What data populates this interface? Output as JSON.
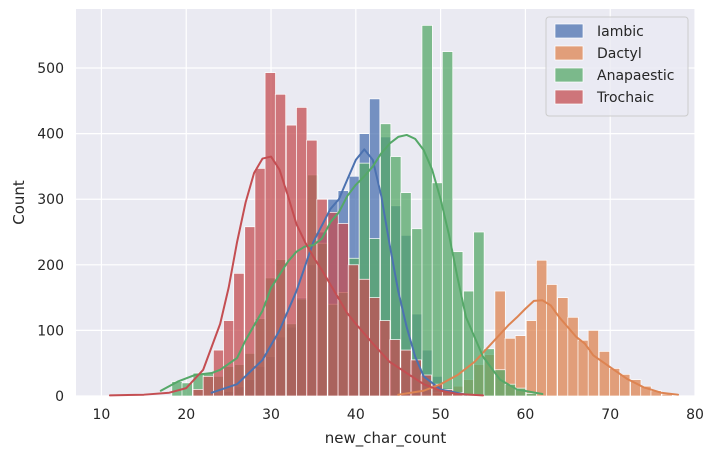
{
  "chart_data": {
    "type": "histogram",
    "xlabel": "new_char_count",
    "ylabel": "Count",
    "xlim": [
      7,
      80
    ],
    "ylim": [
      0,
      590
    ],
    "xticks": [
      "10",
      "20",
      "30",
      "40",
      "50",
      "60",
      "70",
      "80"
    ],
    "yticks": [
      "0",
      "100",
      "200",
      "300",
      "400",
      "500"
    ],
    "grid": true,
    "background": "#EAEAF2",
    "legend": {
      "placement": "top-right",
      "entries": [
        "Iambic",
        "Dactyl",
        "Anapaestic",
        "Trochaic"
      ]
    },
    "bin_width": 1.23,
    "series": [
      {
        "name": "Iambic",
        "color": "#4C72B0",
        "bins": [
          [
            23.2,
            3
          ],
          [
            24.4,
            7
          ],
          [
            25.6,
            14
          ],
          [
            26.9,
            25
          ],
          [
            28.1,
            45
          ],
          [
            29.3,
            60
          ],
          [
            30.6,
            90
          ],
          [
            31.8,
            105
          ],
          [
            33.0,
            150
          ],
          [
            34.3,
            200
          ],
          [
            35.5,
            250
          ],
          [
            36.7,
            300
          ],
          [
            37.9,
            313
          ],
          [
            39.2,
            335
          ],
          [
            40.4,
            400
          ],
          [
            41.6,
            453
          ],
          [
            42.9,
            395
          ],
          [
            44.1,
            290
          ],
          [
            45.3,
            245
          ],
          [
            46.6,
            125
          ],
          [
            47.8,
            70
          ],
          [
            49.0,
            30
          ],
          [
            50.2,
            12
          ],
          [
            51.5,
            5
          ]
        ],
        "kde": [
          [
            23,
            5
          ],
          [
            26,
            18
          ],
          [
            29,
            55
          ],
          [
            31,
            100
          ],
          [
            33,
            160
          ],
          [
            35,
            235
          ],
          [
            37,
            285
          ],
          [
            38,
            300
          ],
          [
            39,
            330
          ],
          [
            40,
            360
          ],
          [
            41,
            376
          ],
          [
            42,
            360
          ],
          [
            43,
            305
          ],
          [
            44,
            230
          ],
          [
            45,
            160
          ],
          [
            46,
            105
          ],
          [
            47,
            60
          ],
          [
            48,
            30
          ],
          [
            50,
            10
          ],
          [
            53,
            2
          ]
        ]
      },
      {
        "name": "Dactyl",
        "color": "#DD8452",
        "bins": [
          [
            47.8,
            2
          ],
          [
            49.0,
            5
          ],
          [
            50.2,
            10
          ],
          [
            51.5,
            15
          ],
          [
            52.7,
            25
          ],
          [
            53.9,
            48
          ],
          [
            55.2,
            63
          ],
          [
            56.4,
            160
          ],
          [
            57.6,
            88
          ],
          [
            58.8,
            92
          ],
          [
            60.1,
            115
          ],
          [
            61.3,
            207
          ],
          [
            62.5,
            170
          ],
          [
            63.8,
            150
          ],
          [
            65.0,
            120
          ],
          [
            66.2,
            85
          ],
          [
            67.4,
            100
          ],
          [
            68.7,
            68
          ],
          [
            69.9,
            42
          ],
          [
            71.1,
            33
          ],
          [
            72.4,
            25
          ],
          [
            73.6,
            15
          ],
          [
            74.8,
            8
          ],
          [
            76.1,
            3
          ]
        ],
        "kde": [
          [
            45,
            2
          ],
          [
            48,
            8
          ],
          [
            50,
            18
          ],
          [
            52,
            32
          ],
          [
            54,
            52
          ],
          [
            56,
            80
          ],
          [
            58,
            108
          ],
          [
            59,
            120
          ],
          [
            60,
            133
          ],
          [
            61,
            145
          ],
          [
            62,
            146
          ],
          [
            63,
            138
          ],
          [
            64,
            120
          ],
          [
            65,
            105
          ],
          [
            66,
            90
          ],
          [
            67,
            80
          ],
          [
            68,
            62
          ],
          [
            70,
            44
          ],
          [
            72,
            26
          ],
          [
            74,
            13
          ],
          [
            76,
            5
          ],
          [
            78,
            2
          ]
        ]
      },
      {
        "name": "Anapaestic",
        "color": "#55A868",
        "bins": [
          [
            18.3,
            22
          ],
          [
            19.5,
            20
          ],
          [
            20.8,
            35
          ],
          [
            22.0,
            35
          ],
          [
            23.2,
            30
          ],
          [
            24.4,
            45
          ],
          [
            25.7,
            48
          ],
          [
            26.9,
            65
          ],
          [
            28.1,
            118
          ],
          [
            29.3,
            180
          ],
          [
            30.6,
            208
          ],
          [
            31.8,
            110
          ],
          [
            33.0,
            148
          ],
          [
            34.3,
            337
          ],
          [
            35.5,
            233
          ],
          [
            36.7,
            140
          ],
          [
            37.9,
            158
          ],
          [
            39.2,
            210
          ],
          [
            40.4,
            355
          ],
          [
            41.6,
            240
          ],
          [
            42.9,
            415
          ],
          [
            44.1,
            365
          ],
          [
            45.3,
            310
          ],
          [
            46.6,
            255
          ],
          [
            47.8,
            565
          ],
          [
            49.0,
            325
          ],
          [
            50.2,
            525
          ],
          [
            51.4,
            220
          ],
          [
            52.7,
            160
          ],
          [
            53.9,
            250
          ],
          [
            55.1,
            72
          ],
          [
            56.4,
            40
          ],
          [
            57.6,
            18
          ],
          [
            58.8,
            12
          ],
          [
            60.1,
            4
          ]
        ],
        "kde": [
          [
            17,
            8
          ],
          [
            19,
            22
          ],
          [
            21,
            32
          ],
          [
            23,
            35
          ],
          [
            24,
            40
          ],
          [
            26,
            58
          ],
          [
            27,
            85
          ],
          [
            29,
            130
          ],
          [
            30,
            165
          ],
          [
            32,
            205
          ],
          [
            33,
            220
          ],
          [
            34,
            228
          ],
          [
            35,
            230
          ],
          [
            36,
            240
          ],
          [
            37,
            265
          ],
          [
            38,
            280
          ],
          [
            39,
            305
          ],
          [
            40,
            322
          ],
          [
            41,
            335
          ],
          [
            42,
            350
          ],
          [
            43,
            370
          ],
          [
            44,
            385
          ],
          [
            45,
            395
          ],
          [
            46,
            398
          ],
          [
            47,
            392
          ],
          [
            48,
            375
          ],
          [
            49,
            345
          ],
          [
            50,
            300
          ],
          [
            51,
            245
          ],
          [
            52,
            180
          ],
          [
            53,
            120
          ],
          [
            55,
            60
          ],
          [
            57,
            25
          ],
          [
            59,
            10
          ],
          [
            62,
            3
          ]
        ]
      },
      {
        "name": "Trochaic",
        "color": "#C44E52",
        "bins": [
          [
            20.8,
            10
          ],
          [
            22.0,
            30
          ],
          [
            23.2,
            70
          ],
          [
            24.4,
            115
          ],
          [
            25.6,
            187
          ],
          [
            26.9,
            258
          ],
          [
            28.1,
            347
          ],
          [
            29.3,
            493
          ],
          [
            30.5,
            460
          ],
          [
            31.8,
            413
          ],
          [
            33.0,
            440
          ],
          [
            34.2,
            390
          ],
          [
            35.4,
            300
          ],
          [
            36.7,
            280
          ],
          [
            37.9,
            263
          ],
          [
            39.1,
            200
          ],
          [
            40.4,
            178
          ],
          [
            41.6,
            150
          ],
          [
            42.8,
            115
          ],
          [
            44.0,
            86
          ],
          [
            45.3,
            70
          ],
          [
            46.5,
            55
          ],
          [
            47.7,
            32
          ],
          [
            49.0,
            18
          ],
          [
            50.2,
            10
          ],
          [
            51.4,
            5
          ]
        ],
        "kde": [
          [
            11,
            1
          ],
          [
            15,
            2
          ],
          [
            18,
            5
          ],
          [
            20,
            12
          ],
          [
            22,
            40
          ],
          [
            24,
            110
          ],
          [
            25,
            165
          ],
          [
            26,
            235
          ],
          [
            27,
            295
          ],
          [
            28,
            340
          ],
          [
            29,
            362
          ],
          [
            30,
            365
          ],
          [
            31,
            345
          ],
          [
            32,
            305
          ],
          [
            33,
            262
          ],
          [
            34,
            235
          ],
          [
            35,
            212
          ],
          [
            36,
            192
          ],
          [
            37,
            170
          ],
          [
            38,
            148
          ],
          [
            39,
            126
          ],
          [
            40,
            110
          ],
          [
            41,
            95
          ],
          [
            42,
            80
          ],
          [
            43,
            66
          ],
          [
            44,
            52
          ],
          [
            46,
            35
          ],
          [
            48,
            18
          ],
          [
            50,
            8
          ],
          [
            52,
            3
          ],
          [
            55,
            1
          ]
        ]
      }
    ]
  }
}
